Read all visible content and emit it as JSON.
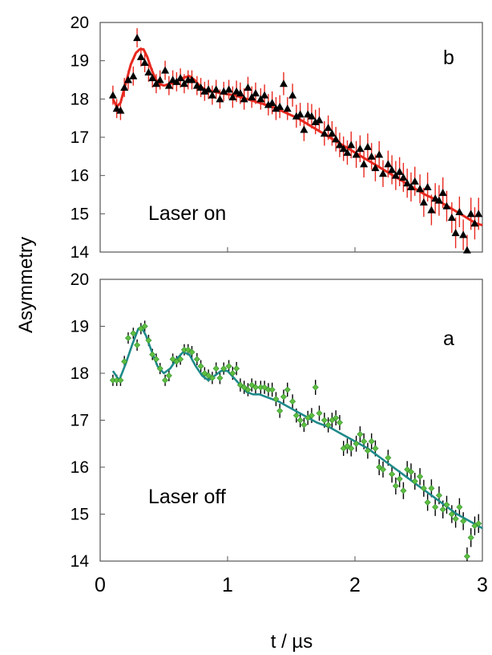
{
  "chart_data": [
    {
      "type": "scatter",
      "panel_label": "b",
      "annotation": "Laser on",
      "xlim": [
        0,
        3
      ],
      "ylim": [
        14,
        20
      ],
      "yticks": [
        "14",
        "15",
        "16",
        "17",
        "18",
        "19",
        "20"
      ],
      "ylabel": "Asymmetry",
      "marker_color": "#000000",
      "errorbar_color": "#e8291f",
      "fit_color": "#e8291f",
      "points": {
        "x": [
          0.1,
          0.13,
          0.16,
          0.19,
          0.22,
          0.26,
          0.29,
          0.32,
          0.35,
          0.38,
          0.41,
          0.44,
          0.47,
          0.51,
          0.54,
          0.57,
          0.6,
          0.63,
          0.66,
          0.69,
          0.72,
          0.76,
          0.79,
          0.82,
          0.85,
          0.88,
          0.91,
          0.94,
          0.97,
          1.01,
          1.04,
          1.07,
          1.1,
          1.13,
          1.16,
          1.19,
          1.22,
          1.26,
          1.29,
          1.32,
          1.35,
          1.38,
          1.41,
          1.44,
          1.47,
          1.51,
          1.54,
          1.57,
          1.6,
          1.63,
          1.66,
          1.69,
          1.72,
          1.76,
          1.79,
          1.82,
          1.85,
          1.88,
          1.91,
          1.94,
          1.97,
          2.01,
          2.04,
          2.07,
          2.1,
          2.13,
          2.16,
          2.19,
          2.22,
          2.26,
          2.29,
          2.32,
          2.35,
          2.38,
          2.41,
          2.44,
          2.47,
          2.51,
          2.54,
          2.57,
          2.6,
          2.63,
          2.66,
          2.69,
          2.72,
          2.76,
          2.79,
          2.82,
          2.85,
          2.88,
          2.91,
          2.94,
          2.97
        ],
        "y": [
          18.1,
          17.75,
          17.7,
          18.3,
          18.5,
          18.6,
          19.6,
          19.1,
          18.95,
          18.7,
          18.55,
          18.4,
          18.5,
          18.75,
          18.35,
          18.5,
          18.45,
          18.55,
          18.4,
          18.5,
          18.5,
          18.35,
          18.3,
          18.2,
          18.25,
          18.1,
          18.25,
          18.0,
          18.2,
          18.25,
          18.05,
          18.2,
          18.15,
          18.0,
          18.3,
          18.05,
          18.15,
          18.0,
          18.1,
          17.85,
          17.9,
          17.75,
          17.8,
          18.4,
          17.75,
          18.1,
          17.55,
          17.6,
          17.2,
          17.6,
          17.55,
          17.4,
          17.45,
          17.1,
          17.25,
          17.1,
          16.95,
          16.8,
          16.7,
          16.6,
          16.8,
          16.55,
          16.7,
          16.3,
          16.75,
          16.5,
          16.2,
          16.55,
          16.05,
          16.3,
          16.15,
          16.0,
          16.1,
          15.95,
          15.8,
          15.7,
          15.85,
          15.65,
          15.3,
          15.7,
          15.1,
          15.4,
          15.35,
          15.55,
          15.2,
          14.9,
          14.5,
          15.05,
          14.45,
          14.05,
          15.0,
          14.75,
          15.0
        ],
        "err": [
          0.25,
          0.25,
          0.25,
          0.25,
          0.25,
          0.25,
          0.25,
          0.25,
          0.25,
          0.25,
          0.25,
          0.25,
          0.25,
          0.25,
          0.25,
          0.25,
          0.25,
          0.25,
          0.25,
          0.25,
          0.25,
          0.25,
          0.25,
          0.25,
          0.25,
          0.25,
          0.25,
          0.25,
          0.25,
          0.25,
          0.28,
          0.28,
          0.28,
          0.28,
          0.28,
          0.28,
          0.28,
          0.28,
          0.28,
          0.28,
          0.3,
          0.3,
          0.3,
          0.3,
          0.3,
          0.3,
          0.3,
          0.3,
          0.3,
          0.3,
          0.32,
          0.32,
          0.32,
          0.32,
          0.32,
          0.32,
          0.32,
          0.32,
          0.32,
          0.32,
          0.35,
          0.35,
          0.35,
          0.35,
          0.35,
          0.35,
          0.35,
          0.35,
          0.35,
          0.35,
          0.38,
          0.38,
          0.38,
          0.38,
          0.38,
          0.38,
          0.38,
          0.38,
          0.38,
          0.38,
          0.4,
          0.4,
          0.4,
          0.4,
          0.4,
          0.4,
          0.4,
          0.4,
          0.4,
          0.4,
          0.42,
          0.42,
          0.42
        ]
      },
      "fit": {
        "x": [
          0.1,
          0.13,
          0.16,
          0.2,
          0.24,
          0.28,
          0.31,
          0.34,
          0.37,
          0.4,
          0.43,
          0.46,
          0.5,
          0.55,
          0.6,
          0.65,
          0.7,
          0.74,
          0.78,
          0.82,
          0.88,
          0.95,
          1.05,
          1.15,
          1.25,
          1.35,
          1.45,
          1.55,
          1.65,
          1.75,
          1.85,
          1.95,
          2.05,
          2.15,
          2.25,
          2.35,
          2.45,
          2.55,
          2.65,
          2.75,
          2.85,
          2.95,
          3.0
        ],
        "y": [
          18.0,
          17.8,
          17.9,
          18.4,
          18.9,
          19.2,
          19.3,
          19.3,
          19.1,
          18.8,
          18.55,
          18.4,
          18.35,
          18.4,
          18.45,
          18.55,
          18.6,
          18.5,
          18.35,
          18.25,
          18.2,
          18.15,
          18.1,
          18.0,
          17.9,
          17.8,
          17.65,
          17.5,
          17.3,
          17.1,
          16.9,
          16.7,
          16.5,
          16.3,
          16.1,
          15.9,
          15.7,
          15.5,
          15.35,
          15.15,
          14.95,
          14.75,
          14.7
        ]
      }
    },
    {
      "type": "scatter",
      "panel_label": "a",
      "annotation": "Laser off",
      "xlim": [
        0,
        3
      ],
      "ylim": [
        14,
        20
      ],
      "xticks": [
        "0",
        "1",
        "2",
        "3"
      ],
      "yticks": [
        "14",
        "15",
        "16",
        "17",
        "18",
        "19",
        "20"
      ],
      "xlabel": "t / µs",
      "marker_color": "#5fbf3f",
      "errorbar_color": "#000000",
      "fit_color": "#1f8a8a",
      "points": {
        "x": [
          0.1,
          0.13,
          0.16,
          0.19,
          0.22,
          0.26,
          0.29,
          0.32,
          0.35,
          0.38,
          0.41,
          0.44,
          0.47,
          0.51,
          0.54,
          0.57,
          0.6,
          0.63,
          0.66,
          0.69,
          0.72,
          0.76,
          0.79,
          0.82,
          0.85,
          0.88,
          0.91,
          0.94,
          0.97,
          1.01,
          1.04,
          1.07,
          1.1,
          1.13,
          1.16,
          1.19,
          1.22,
          1.26,
          1.29,
          1.32,
          1.35,
          1.38,
          1.41,
          1.44,
          1.47,
          1.51,
          1.54,
          1.57,
          1.6,
          1.63,
          1.66,
          1.69,
          1.72,
          1.76,
          1.79,
          1.82,
          1.85,
          1.88,
          1.91,
          1.94,
          1.97,
          2.01,
          2.04,
          2.07,
          2.1,
          2.13,
          2.16,
          2.19,
          2.22,
          2.26,
          2.29,
          2.32,
          2.35,
          2.38,
          2.41,
          2.44,
          2.47,
          2.51,
          2.54,
          2.57,
          2.6,
          2.63,
          2.66,
          2.69,
          2.72,
          2.76,
          2.79,
          2.82,
          2.85,
          2.88,
          2.91,
          2.94,
          2.97
        ],
        "y": [
          17.85,
          17.85,
          17.85,
          18.25,
          18.75,
          18.85,
          18.6,
          18.95,
          19.0,
          18.7,
          18.4,
          18.3,
          18.1,
          17.85,
          17.95,
          18.3,
          18.25,
          18.3,
          18.5,
          18.5,
          18.45,
          18.3,
          18.15,
          18.0,
          17.95,
          17.9,
          18.1,
          17.9,
          18.1,
          18.15,
          18.0,
          18.1,
          17.75,
          17.7,
          17.65,
          17.75,
          17.7,
          17.7,
          17.7,
          17.65,
          17.65,
          17.45,
          17.2,
          17.5,
          17.65,
          17.4,
          17.1,
          17.0,
          16.9,
          17.05,
          17.1,
          17.7,
          17.15,
          17.0,
          16.9,
          17.0,
          17.05,
          16.95,
          16.4,
          16.45,
          16.4,
          16.5,
          16.7,
          16.55,
          16.35,
          16.55,
          16.4,
          16.0,
          15.95,
          16.2,
          15.85,
          15.6,
          15.75,
          15.5,
          15.95,
          15.9,
          15.7,
          15.8,
          15.55,
          15.25,
          15.55,
          15.15,
          15.4,
          15.1,
          15.2,
          15.0,
          14.9,
          15.15,
          14.85,
          14.1,
          14.5,
          14.75,
          14.8
        ],
        "err": [
          0.12,
          0.12,
          0.12,
          0.12,
          0.12,
          0.12,
          0.12,
          0.12,
          0.12,
          0.12,
          0.12,
          0.12,
          0.12,
          0.12,
          0.12,
          0.12,
          0.12,
          0.12,
          0.12,
          0.12,
          0.13,
          0.13,
          0.13,
          0.13,
          0.13,
          0.13,
          0.13,
          0.13,
          0.13,
          0.13,
          0.14,
          0.14,
          0.14,
          0.14,
          0.14,
          0.14,
          0.14,
          0.14,
          0.14,
          0.14,
          0.15,
          0.15,
          0.15,
          0.15,
          0.15,
          0.15,
          0.15,
          0.15,
          0.15,
          0.15,
          0.16,
          0.16,
          0.16,
          0.16,
          0.16,
          0.16,
          0.16,
          0.16,
          0.16,
          0.16,
          0.17,
          0.17,
          0.17,
          0.17,
          0.17,
          0.17,
          0.17,
          0.17,
          0.17,
          0.17,
          0.18,
          0.18,
          0.18,
          0.18,
          0.18,
          0.18,
          0.18,
          0.18,
          0.18,
          0.18,
          0.19,
          0.19,
          0.19,
          0.19,
          0.19,
          0.19,
          0.19,
          0.19,
          0.19,
          0.19,
          0.2,
          0.2,
          0.2
        ]
      },
      "fit": {
        "x": [
          0.1,
          0.15,
          0.2,
          0.25,
          0.3,
          0.33,
          0.36,
          0.4,
          0.45,
          0.5,
          0.55,
          0.6,
          0.65,
          0.7,
          0.75,
          0.8,
          0.85,
          0.9,
          0.95,
          1.0,
          1.05,
          1.1,
          1.15,
          1.2,
          1.25,
          1.3,
          1.4,
          1.5,
          1.6,
          1.7,
          1.8,
          1.9,
          2.0,
          2.1,
          2.2,
          2.3,
          2.4,
          2.5,
          2.6,
          2.7,
          2.8,
          2.9,
          3.0
        ],
        "y": [
          18.05,
          17.85,
          18.2,
          18.6,
          18.95,
          18.95,
          18.8,
          18.5,
          18.15,
          18.0,
          18.1,
          18.3,
          18.45,
          18.4,
          18.15,
          17.95,
          17.85,
          17.95,
          18.05,
          18.05,
          17.9,
          17.75,
          17.6,
          17.55,
          17.55,
          17.5,
          17.4,
          17.25,
          17.1,
          16.95,
          16.85,
          16.7,
          16.55,
          16.4,
          16.2,
          16.0,
          15.8,
          15.6,
          15.4,
          15.2,
          15.0,
          14.85,
          14.7
        ]
      }
    }
  ]
}
